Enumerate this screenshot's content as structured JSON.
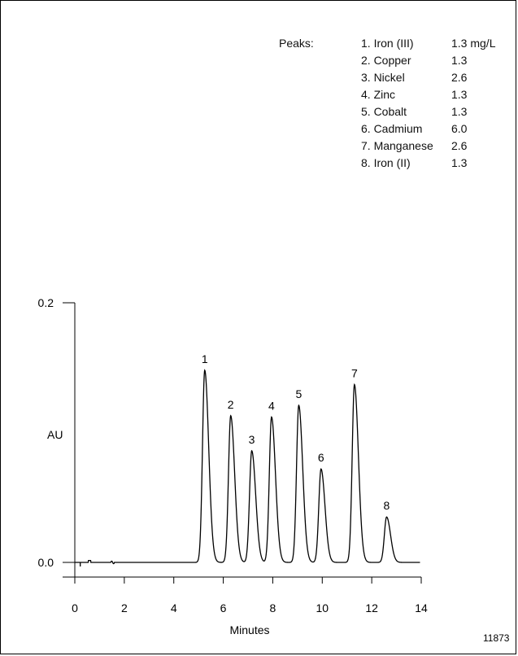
{
  "figure_id": "11873",
  "legend": {
    "title": "Peaks:",
    "entries": [
      {
        "label": "1. Iron (III)",
        "conc": "1.3 mg/L"
      },
      {
        "label": "2. Copper",
        "conc": "1.3"
      },
      {
        "label": "3. Nickel",
        "conc": "2.6"
      },
      {
        "label": "4. Zinc",
        "conc": "1.3"
      },
      {
        "label": "5. Cobalt",
        "conc": "1.3"
      },
      {
        "label": "6. Cadmium",
        "conc": "6.0"
      },
      {
        "label": "7. Manganese",
        "conc": "2.6"
      },
      {
        "label": "8. Iron (II)",
        "conc": "1.3"
      }
    ]
  },
  "chart_data": {
    "type": "line",
    "title": "",
    "xlabel": "Minutes",
    "ylabel": "AU",
    "xlim": [
      0,
      14
    ],
    "ylim": [
      0.0,
      0.2
    ],
    "xticks": [
      "0",
      "2",
      "4",
      "6",
      "8",
      "10",
      "12",
      "14"
    ],
    "yticks": [
      "0.0",
      "0.2"
    ],
    "grid": false,
    "peaks": [
      {
        "label": "1",
        "time": 5.25,
        "height": 0.148
      },
      {
        "label": "2",
        "time": 6.3,
        "height": 0.113
      },
      {
        "label": "3",
        "time": 7.15,
        "height": 0.086
      },
      {
        "label": "4",
        "time": 7.95,
        "height": 0.112
      },
      {
        "label": "5",
        "time": 9.05,
        "height": 0.121
      },
      {
        "label": "6",
        "time": 9.95,
        "height": 0.072
      },
      {
        "label": "7",
        "time": 11.3,
        "height": 0.137
      },
      {
        "label": "8",
        "time": 12.6,
        "height": 0.035
      }
    ]
  }
}
